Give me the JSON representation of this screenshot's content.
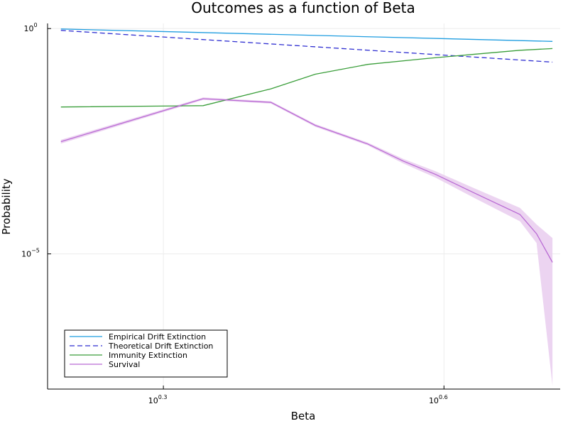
{
  "chart_data": {
    "type": "line",
    "title": "Outcomes as a function of Beta",
    "xlabel": "Beta",
    "ylabel": "Probability",
    "x_scale": "log10",
    "y_scale": "log10",
    "xlim": [
      1.5,
      5.3
    ],
    "ylim": [
      1e-08,
      1.3
    ],
    "grid": true,
    "legend_position": "bottom-left",
    "x_ticks": [
      {
        "value": 1.995,
        "base": "10",
        "exponent": "0.3"
      },
      {
        "value": 3.981,
        "base": "10",
        "exponent": "0.6"
      }
    ],
    "y_ticks": [
      {
        "value": 1.0,
        "base": "10",
        "exponent": "0"
      },
      {
        "value": 1e-05,
        "base": "10",
        "exponent": "−5"
      }
    ],
    "x": [
      1.55,
      2.2,
      2.6,
      3.4,
      4.0,
      4.8,
      5.2
    ],
    "series": [
      {
        "name": "Empirical Drift Extinction",
        "color": "#1f9de0",
        "dash": "solid",
        "x": [
          1.55,
          5.2
        ],
        "values": [
          0.98,
          0.52
        ]
      },
      {
        "name": "Theoretical Drift Extinction",
        "color": "#2e2ed1",
        "dash": "dashed",
        "x": [
          1.55,
          5.2
        ],
        "values": [
          0.91,
          0.18
        ]
      },
      {
        "name": "Immunity Extinction",
        "color": "#3a9e3a",
        "dash": "solid",
        "x": [
          1.55,
          2.2,
          2.6,
          2.9,
          3.3,
          3.8,
          4.3,
          4.8,
          5.2
        ],
        "values": [
          0.0182,
          0.0195,
          0.046,
          0.097,
          0.16,
          0.215,
          0.27,
          0.33,
          0.36
        ]
      },
      {
        "name": "Survival",
        "color": "#b96bd4",
        "dash": "solid",
        "x": [
          1.55,
          2.2,
          2.6,
          2.9,
          3.3,
          3.6,
          3.9,
          4.3,
          4.8,
          5.0,
          5.2
        ],
        "values": [
          0.0031,
          0.0278,
          0.023,
          0.0071,
          0.00275,
          0.00115,
          0.00058,
          0.00022,
          7.5e-05,
          2.8e-05,
          6.5e-06
        ],
        "band_lower": [
          0.0028,
          0.0261,
          0.0216,
          0.0066,
          0.00255,
          0.00102,
          0.00049,
          0.00017,
          5.3e-05,
          1.75e-05,
          1.2e-08
        ],
        "band_upper": [
          0.0034,
          0.0296,
          0.0245,
          0.0076,
          0.00295,
          0.00128,
          0.00068,
          0.00028,
          0.000105,
          4.5e-05,
          2.25e-05
        ],
        "band_color": "#e9cdee"
      }
    ]
  }
}
